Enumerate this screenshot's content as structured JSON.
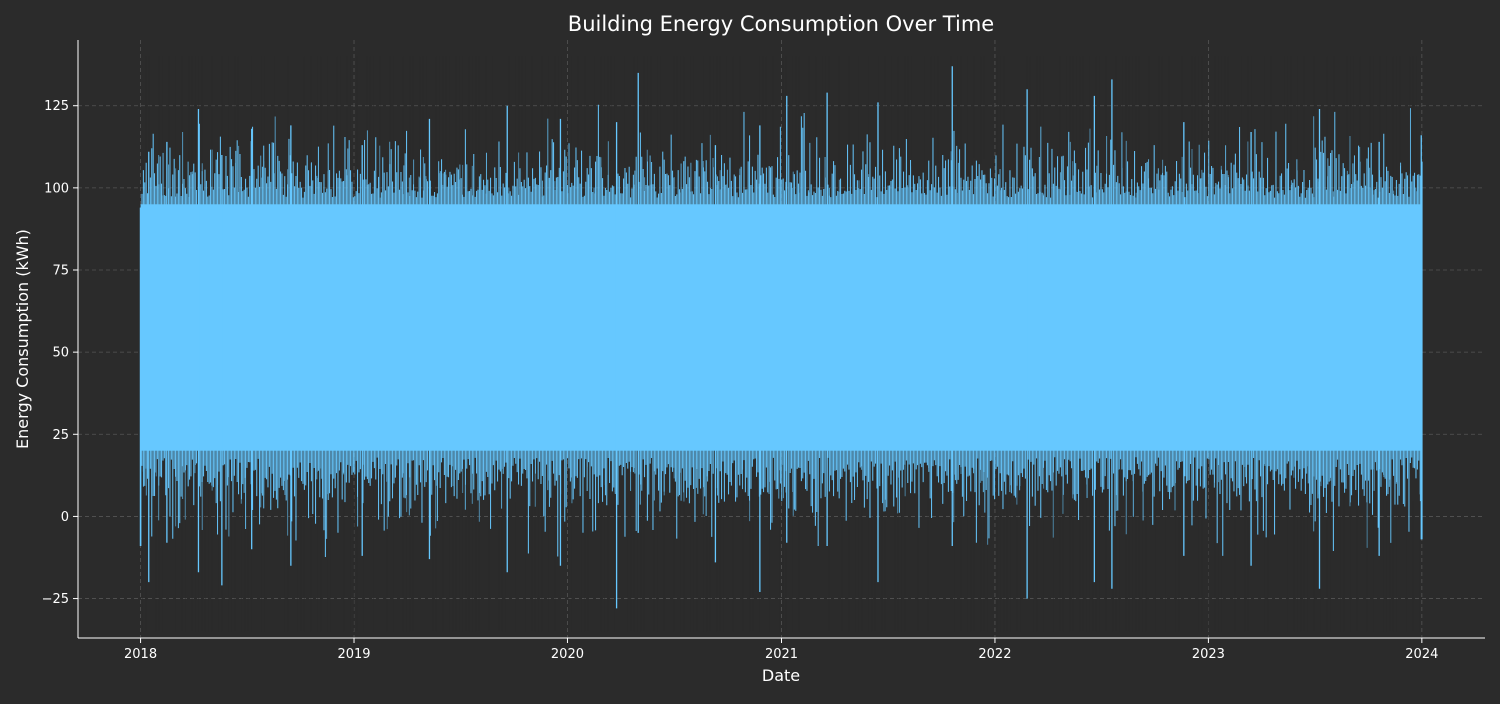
{
  "chart_data": {
    "type": "line",
    "title": "Building Energy Consumption Over Time",
    "xlabel": "Date",
    "ylabel": "Energy Consumption (kWh)",
    "x_ticks": [
      "2018",
      "2019",
      "2020",
      "2021",
      "2022",
      "2023",
      "2024"
    ],
    "x_range": [
      "2017-09-16",
      "2024-04-18"
    ],
    "y_ticks": [
      -25,
      0,
      25,
      50,
      75,
      100,
      125
    ],
    "ylim": [
      -37,
      145
    ],
    "grid": true,
    "grid_style": "dashed",
    "legend": "none",
    "series": [
      {
        "color": "#66c8ff",
        "frequency": "hourly",
        "start": "2018-01-01",
        "end": "2024-01-01",
        "envelope": {
          "typical_band": [
            20,
            95
          ],
          "max_observed": 137,
          "min_observed": -28
        },
        "values": [
          {
            "date": "2018-01-01",
            "min": -9,
            "max": 94
          },
          {
            "date": "2018-01-15",
            "min": -20,
            "max": 111
          },
          {
            "date": "2018-02-15",
            "min": -8,
            "max": 114
          },
          {
            "date": "2018-04-10",
            "min": -17,
            "max": 124
          },
          {
            "date": "2018-05-20",
            "min": -21,
            "max": 110
          },
          {
            "date": "2018-07-10",
            "min": -10,
            "max": 118
          },
          {
            "date": "2018-09-15",
            "min": -15,
            "max": 119
          },
          {
            "date": "2019-01-15",
            "min": -12,
            "max": 113
          },
          {
            "date": "2019-05-10",
            "min": -13,
            "max": 121
          },
          {
            "date": "2019-09-20",
            "min": -17,
            "max": 125
          },
          {
            "date": "2019-12-20",
            "min": -15,
            "max": 121
          },
          {
            "date": "2020-03-25",
            "min": -28,
            "max": 120
          },
          {
            "date": "2020-05-01",
            "min": -5,
            "max": 135
          },
          {
            "date": "2020-09-10",
            "min": -14,
            "max": 113
          },
          {
            "date": "2020-11-25",
            "min": -23,
            "max": 119
          },
          {
            "date": "2021-01-10",
            "min": -8,
            "max": 128
          },
          {
            "date": "2021-03-20",
            "min": -9,
            "max": 129
          },
          {
            "date": "2021-06-15",
            "min": -20,
            "max": 126
          },
          {
            "date": "2021-10-20",
            "min": -9,
            "max": 137
          },
          {
            "date": "2022-02-25",
            "min": -25,
            "max": 130
          },
          {
            "date": "2022-06-20",
            "min": -20,
            "max": 128
          },
          {
            "date": "2022-07-20",
            "min": -22,
            "max": 133
          },
          {
            "date": "2022-11-20",
            "min": -12,
            "max": 120
          },
          {
            "date": "2023-03-15",
            "min": -15,
            "max": 117
          },
          {
            "date": "2023-07-10",
            "min": -22,
            "max": 124
          },
          {
            "date": "2023-10-20",
            "min": -12,
            "max": 114
          },
          {
            "date": "2023-12-31",
            "min": -7,
            "max": 116
          }
        ]
      }
    ]
  }
}
